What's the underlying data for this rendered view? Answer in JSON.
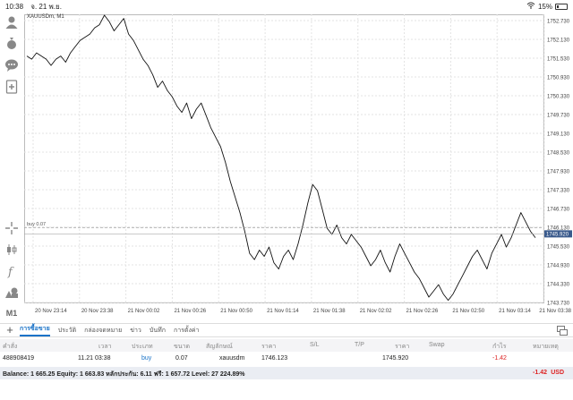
{
  "status_bar": {
    "time": "10:38",
    "date": "จ. 21 พ.ย.",
    "battery": "15%"
  },
  "chart": {
    "symbol_label": "XAUUSDm, M1",
    "bid_line_label": "buy 0.07",
    "current_price": "1745.920"
  },
  "chart_data": {
    "type": "line",
    "title": "XAUUSDm, M1",
    "y_ticks": [
      "1752.730",
      "1752.130",
      "1751.530",
      "1750.930",
      "1750.330",
      "1749.730",
      "1749.130",
      "1748.530",
      "1747.930",
      "1747.330",
      "1746.730",
      "1746.130",
      "1745.530",
      "1744.930",
      "1744.330",
      "1743.730"
    ],
    "x_ticks": [
      "20 Nov 23:14",
      "20 Nov 23:38",
      "21 Nov 00:02",
      "21 Nov 00:26",
      "21 Nov 00:50",
      "21 Nov 01:14",
      "21 Nov 01:38",
      "21 Nov 02:02",
      "21 Nov 02:26",
      "21 Nov 02:50",
      "21 Nov 03:14",
      "21 Nov 03:38"
    ],
    "ylim": [
      1743.73,
      1752.93
    ],
    "grid": true,
    "series": [
      {
        "values": [
          1751.6,
          1751.5,
          1751.7,
          1751.6,
          1751.5,
          1751.3,
          1751.5,
          1751.6,
          1751.4,
          1751.7,
          1751.9,
          1752.1,
          1752.2,
          1752.3,
          1752.5,
          1752.6,
          1752.9,
          1752.7,
          1752.4,
          1752.6,
          1752.8,
          1752.3,
          1752.1,
          1751.8,
          1751.5,
          1751.3,
          1751.0,
          1750.6,
          1750.8,
          1750.5,
          1750.3,
          1750.0,
          1749.8,
          1750.1,
          1749.6,
          1749.9,
          1750.1,
          1749.7,
          1749.3,
          1749.0,
          1748.7,
          1748.2,
          1747.6,
          1747.1,
          1746.6,
          1746.0,
          1745.3,
          1745.1,
          1745.4,
          1745.2,
          1745.5,
          1745.0,
          1744.8,
          1745.2,
          1745.4,
          1745.1,
          1745.6,
          1746.2,
          1746.9,
          1747.5,
          1747.3,
          1746.7,
          1746.1,
          1745.9,
          1746.2,
          1745.8,
          1745.6,
          1745.9,
          1745.7,
          1745.5,
          1745.2,
          1744.9,
          1745.1,
          1745.4,
          1745.0,
          1744.7,
          1745.2,
          1745.6,
          1745.3,
          1745.0,
          1744.7,
          1744.5,
          1744.2,
          1743.9,
          1744.1,
          1744.3,
          1744.0,
          1743.8,
          1744.0,
          1744.3,
          1744.6,
          1744.9,
          1745.2,
          1745.4,
          1745.1,
          1744.8,
          1745.3,
          1745.6,
          1745.9,
          1745.5,
          1745.8,
          1746.2,
          1746.6,
          1746.3,
          1746.0,
          1745.8
        ]
      }
    ]
  },
  "toolbar": {
    "m1_label": "M1"
  },
  "tabs": [
    "การซื้อขาย",
    "ประวัติ",
    "กล่องจดหมาย",
    "ข่าว",
    "บันทึก",
    "การตั้งค่า"
  ],
  "trade_table": {
    "headers": [
      "คำสั่ง",
      "เวลา",
      "ประเภท",
      "ขนาด",
      "สัญลักษณ์",
      "ราคา",
      "S/L",
      "T/P",
      "ราคา",
      "Swap",
      "กำไร",
      "หมายเหตุ"
    ],
    "row": {
      "order": "488908419",
      "time": "11.21 03:38",
      "type": "buy",
      "size": "0.07",
      "symbol": "xauusdm",
      "open_price": "1746.123",
      "sl": "",
      "tp": "",
      "price": "1745.920",
      "swap": "",
      "profit": "-1.42",
      "comment": ""
    }
  },
  "balance": {
    "text": "Balance: 1 665.25 Equity: 1 663.83 หลักประกัน: 6.11 ฟรี: 1 657.72 Level: 27 224.89%",
    "total": "-1.42",
    "currency": "USD"
  },
  "colors": {
    "accent": "#1a73c8",
    "loss": "#dd2222",
    "price_tag": "#3a5a8c"
  }
}
